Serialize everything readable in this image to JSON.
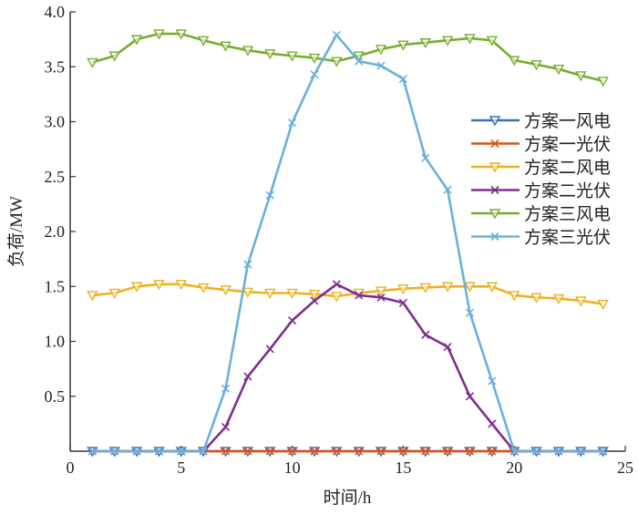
{
  "chart_data": {
    "type": "line",
    "title": "",
    "xlabel": "时间/h",
    "ylabel": "负荷/MW",
    "xlim": [
      0,
      25
    ],
    "ylim": [
      0,
      4.0
    ],
    "xticks": [
      "0",
      "5",
      "10",
      "15",
      "20",
      "25"
    ],
    "yticks": [
      "0.5",
      "1.0",
      "1.5",
      "2.0",
      "2.5",
      "3.0",
      "3.5",
      "4.0"
    ],
    "grid": false,
    "legend_position": "right",
    "x": [
      1,
      2,
      3,
      4,
      5,
      6,
      7,
      8,
      9,
      10,
      11,
      12,
      13,
      14,
      15,
      16,
      17,
      18,
      19,
      20,
      21,
      22,
      23,
      24
    ],
    "series": [
      {
        "name": "方案一风电",
        "color": "#3b6fb6",
        "marker": "triangle-down",
        "values": [
          0,
          0,
          0,
          0,
          0,
          0,
          0,
          0,
          0,
          0,
          0,
          0,
          0,
          0,
          0,
          0,
          0,
          0,
          0,
          0,
          0,
          0,
          0,
          0
        ]
      },
      {
        "name": "方案一光伏",
        "color": "#d95319",
        "marker": "x",
        "values": [
          0,
          0,
          0,
          0,
          0,
          0,
          0,
          0,
          0,
          0,
          0,
          0,
          0,
          0,
          0,
          0,
          0,
          0,
          0,
          0,
          0,
          0,
          0,
          0
        ]
      },
      {
        "name": "方案二风电",
        "color": "#edb120",
        "marker": "triangle-down",
        "values": [
          1.42,
          1.44,
          1.5,
          1.52,
          1.52,
          1.49,
          1.47,
          1.45,
          1.44,
          1.44,
          1.43,
          1.41,
          1.44,
          1.46,
          1.48,
          1.49,
          1.5,
          1.5,
          1.5,
          1.42,
          1.4,
          1.39,
          1.37,
          1.34
        ]
      },
      {
        "name": "方案二光伏",
        "color": "#7e2f8e",
        "marker": "x",
        "values": [
          0,
          0,
          0,
          0,
          0,
          0,
          0.22,
          0.68,
          0.93,
          1.19,
          1.37,
          1.52,
          1.42,
          1.4,
          1.35,
          1.06,
          0.95,
          0.5,
          0.25,
          0,
          0,
          0,
          0,
          0
        ]
      },
      {
        "name": "方案三风电",
        "color": "#77ac30",
        "marker": "triangle-down",
        "values": [
          3.54,
          3.6,
          3.75,
          3.8,
          3.8,
          3.74,
          3.69,
          3.65,
          3.62,
          3.6,
          3.58,
          3.55,
          3.6,
          3.66,
          3.7,
          3.72,
          3.74,
          3.76,
          3.74,
          3.56,
          3.52,
          3.48,
          3.42,
          3.37
        ]
      },
      {
        "name": "方案三光伏",
        "color": "#6ab0da",
        "marker": "x",
        "values": [
          0,
          0,
          0,
          0,
          0,
          0,
          0.57,
          1.7,
          2.33,
          2.99,
          3.43,
          3.79,
          3.55,
          3.51,
          3.39,
          2.67,
          2.38,
          1.26,
          0.64,
          0,
          0,
          0,
          0,
          0
        ]
      }
    ]
  }
}
